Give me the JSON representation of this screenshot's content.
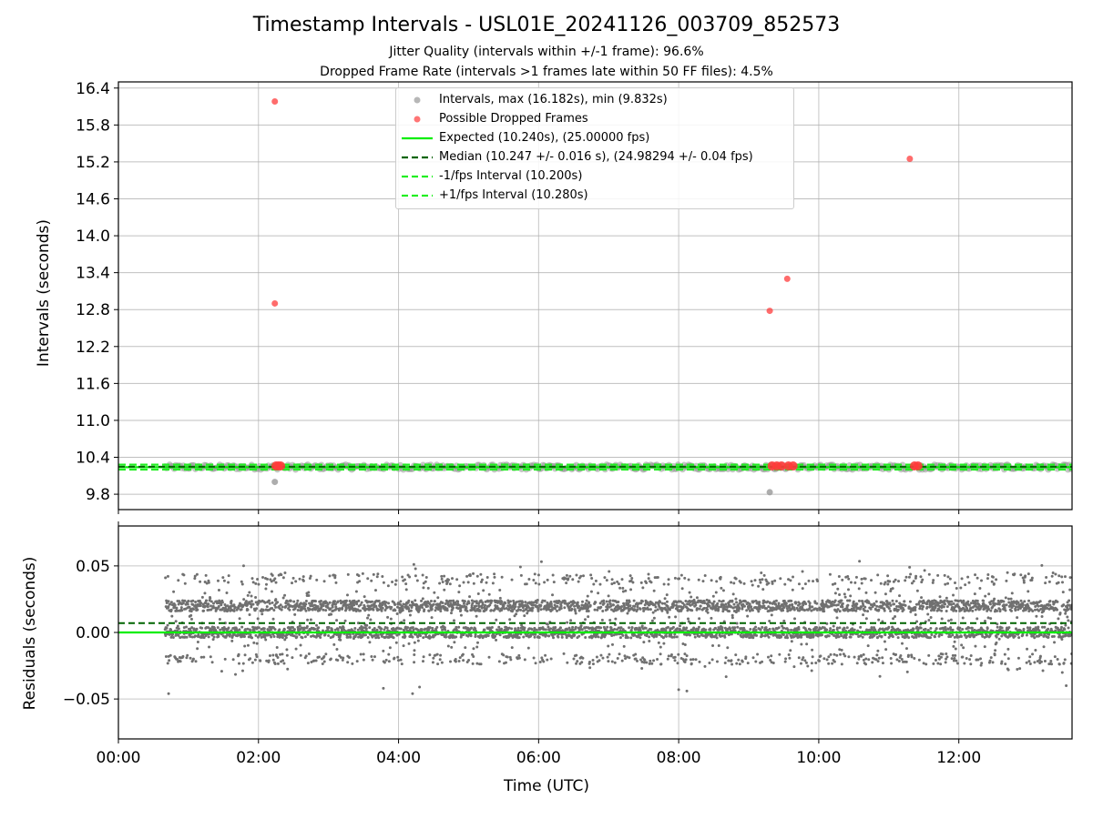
{
  "title": "Timestamp Intervals - USL01E_20241126_003709_852573",
  "subtitle_1": "Jitter Quality (intervals within +/-1 frame): 96.6%",
  "subtitle_2": "Dropped Frame Rate (intervals >1 frames late within 50 FF files): 4.5%",
  "colors": {
    "intervals": "#999999",
    "dropped": "#ff3b3b",
    "expected": "#00ee00",
    "median": "#006400",
    "fps_bounds": "#22ee22",
    "residuals": "#707070",
    "grid": "#b0b0b0"
  },
  "legend": [
    {
      "type": "dot",
      "color_key": "intervals",
      "label": "Intervals, max (16.182s), min (9.832s)"
    },
    {
      "type": "dot",
      "color_key": "dropped",
      "label": "Possible Dropped Frames"
    },
    {
      "type": "solid",
      "color_key": "expected",
      "label": "Expected (10.240s), (25.00000 fps)"
    },
    {
      "type": "dashed",
      "color_key": "median",
      "label": "Median (10.247 +/- 0.016 s), (24.98294 +/- 0.04 fps)"
    },
    {
      "type": "dashed",
      "color_key": "fps_bounds",
      "label": "-1/fps Interval (10.200s)"
    },
    {
      "type": "dashed",
      "color_key": "fps_bounds",
      "label": "+1/fps Interval (10.280s)"
    }
  ],
  "chart_data": [
    {
      "type": "scatter",
      "name": "intervals",
      "ylabel": "Intervals (seconds)",
      "xlabel": "",
      "xlim": [
        "00:00",
        "13:37"
      ],
      "ylim": [
        9.55,
        16.5
      ],
      "yticks": [
        "9.8",
        "10.4",
        "11.0",
        "11.6",
        "12.2",
        "12.8",
        "13.4",
        "14.0",
        "14.6",
        "15.2",
        "15.8",
        "16.4"
      ],
      "grid": true,
      "legend_position": "upper center",
      "series": [
        {
          "name": "Intervals, max (16.182s), min (9.832s)",
          "x_range": [
            "00:40",
            "13:37"
          ],
          "y_band": [
            10.2,
            10.28
          ],
          "outliers": [
            {
              "x": "02:14",
              "y": 10.0
            },
            {
              "x": "09:18",
              "y": 9.832
            }
          ]
        },
        {
          "name": "Possible Dropped Frames",
          "points": [
            {
              "x": "02:14",
              "y": 16.182
            },
            {
              "x": "02:14",
              "y": 12.9
            },
            {
              "x": "09:18",
              "y": 12.78
            },
            {
              "x": "09:33",
              "y": 13.3
            },
            {
              "x": "11:18",
              "y": 15.25
            },
            {
              "x": "02:15",
              "y": 10.26
            },
            {
              "x": "02:17",
              "y": 10.26
            },
            {
              "x": "02:19",
              "y": 10.26
            },
            {
              "x": "09:20",
              "y": 10.26
            },
            {
              "x": "09:24",
              "y": 10.26
            },
            {
              "x": "09:28",
              "y": 10.26
            },
            {
              "x": "09:34",
              "y": 10.26
            },
            {
              "x": "09:38",
              "y": 10.26
            },
            {
              "x": "11:22",
              "y": 10.26
            },
            {
              "x": "11:25",
              "y": 10.26
            }
          ]
        }
      ],
      "hlines": [
        {
          "name": "Expected (10.240s), (25.00000 fps)",
          "y": 10.24,
          "style": "solid"
        },
        {
          "name": "Median (10.247 +/- 0.016 s), (24.98294 +/- 0.04 fps)",
          "y": 10.247,
          "style": "dashed"
        },
        {
          "name": "-1/fps Interval (10.200s)",
          "y": 10.2,
          "style": "dashed"
        },
        {
          "name": "+1/fps Interval (10.280s)",
          "y": 10.28,
          "style": "dashed"
        }
      ]
    },
    {
      "type": "scatter",
      "name": "residuals",
      "ylabel": "Residuals (seconds)",
      "xlabel": "Time (UTC)",
      "xlim": [
        "00:00",
        "13:37"
      ],
      "xticks": [
        "00:00",
        "02:00",
        "04:00",
        "06:00",
        "08:00",
        "10:00",
        "12:00"
      ],
      "ylim": [
        -0.08,
        0.08
      ],
      "yticks": [
        "−0.05",
        "0.00",
        "0.05"
      ],
      "grid": true,
      "levels": [
        -0.02,
        0.0,
        0.02,
        0.04
      ],
      "hlines": [
        {
          "y": 0.0,
          "style": "solid"
        },
        {
          "y": 0.007,
          "style": "dashed"
        }
      ]
    }
  ]
}
